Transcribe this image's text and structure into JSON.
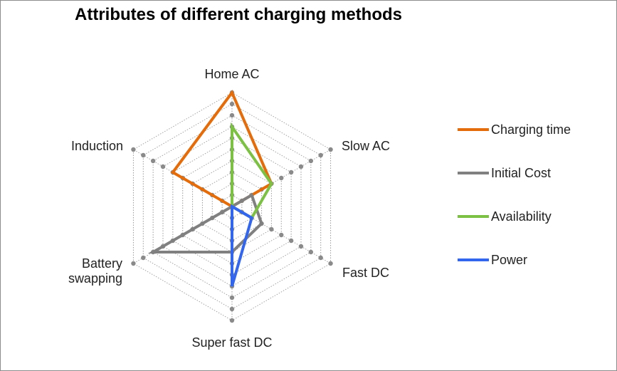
{
  "chart_data": {
    "type": "radar",
    "title": "Attributes of different charging methods",
    "categories": [
      "Home AC",
      "Slow AC",
      "Fast DC",
      "Super fast DC",
      "Battery swapping",
      "Induction"
    ],
    "category_lines": [
      [
        "Home AC"
      ],
      [
        "Slow AC"
      ],
      [
        "Fast DC"
      ],
      [
        "Super fast DC"
      ],
      [
        "Battery",
        "swapping"
      ],
      [
        "Induction"
      ]
    ],
    "rlim": [
      0,
      10
    ],
    "grid": true,
    "legend_position": "right",
    "series": [
      {
        "name": "Charging time",
        "color": "#e46c0a",
        "values": [
          10,
          4,
          0,
          0,
          0,
          6
        ]
      },
      {
        "name": "Initial Cost",
        "color": "#808080",
        "values": [
          0,
          2,
          3,
          4,
          8,
          0
        ]
      },
      {
        "name": "Availability",
        "color": "#7cc143",
        "values": [
          7,
          4,
          2,
          0,
          0,
          0
        ]
      },
      {
        "name": "Power",
        "color": "#3366ee",
        "values": [
          0,
          0,
          2,
          7,
          0,
          0
        ]
      }
    ]
  }
}
